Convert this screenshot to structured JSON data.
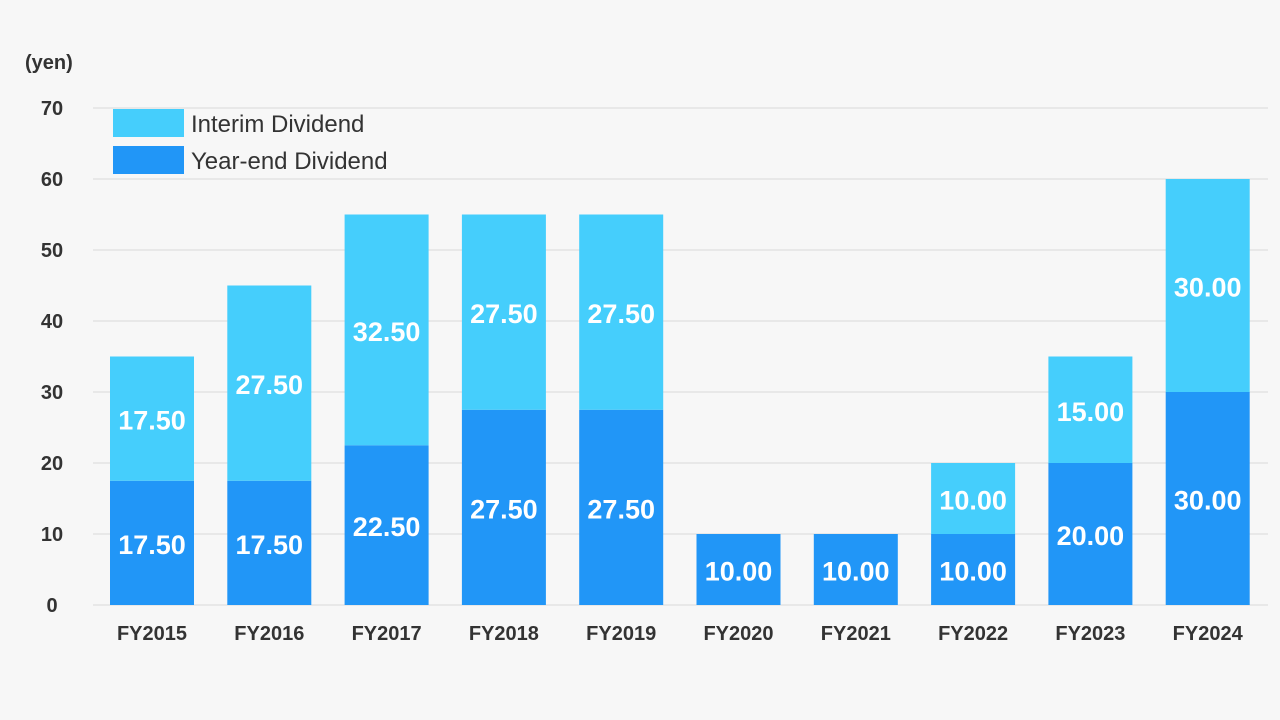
{
  "chart_data": {
    "type": "bar",
    "stacked": true,
    "categories": [
      "FY2015",
      "FY2016",
      "FY2017",
      "FY2018",
      "FY2019",
      "FY2020",
      "FY2021",
      "FY2022",
      "FY2023",
      "FY2024"
    ],
    "series": [
      {
        "name": "Year-end Dividend",
        "color": "#2196f7",
        "values": [
          17.5,
          17.5,
          22.5,
          27.5,
          27.5,
          10.0,
          10.0,
          10.0,
          20.0,
          30.0
        ],
        "labels": [
          "17.50",
          "17.50",
          "22.50",
          "27.50",
          "27.50",
          "10.00",
          "10.00",
          "10.00",
          "20.00",
          "30.00"
        ]
      },
      {
        "name": "Interim Dividend",
        "color": "#45cefc",
        "values": [
          17.5,
          27.5,
          32.5,
          27.5,
          27.5,
          0,
          0,
          10.0,
          15.0,
          30.0
        ],
        "labels": [
          "17.50",
          "27.50",
          "32.50",
          "27.50",
          "27.50",
          "",
          "",
          "10.00",
          "15.00",
          "30.00"
        ]
      }
    ],
    "y_unit": "(yen)",
    "ylim": [
      0,
      70
    ],
    "yticks": [
      0,
      10,
      20,
      30,
      40,
      50,
      60,
      70
    ],
    "grid": true,
    "legend_position": "top-left",
    "legend_order": [
      "Interim Dividend",
      "Year-end Dividend"
    ]
  }
}
